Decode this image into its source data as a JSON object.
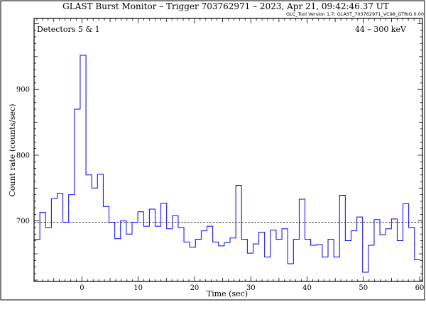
{
  "chart_data": {
    "type": "line",
    "style": "histogram-step",
    "title": "GLAST Burst Monitor  –  Trigger 703762971  –  2023, Apr 21, 09:42:46.37 UT",
    "subtitle": "GLC_Tool Version 1.7; GLAST_703762971_VC98_GTRIG.0.00",
    "left_annotation": "Detectors 5 & 1",
    "right_annotation": "44 – 300 keV",
    "xlabel": "Time (sec)",
    "ylabel": "Count rate (counts/sec)",
    "xlim": [
      -8.5,
      60.5
    ],
    "ylim": [
      608,
      1008
    ],
    "x_ticks": [
      0,
      10,
      20,
      30,
      40,
      50,
      60
    ],
    "y_ticks": [
      700,
      800,
      900
    ],
    "reference_line": {
      "value": 698,
      "style": "dashed"
    },
    "bin_width": 1.024,
    "bin_start": -8.5,
    "values": [
      672,
      713,
      690,
      734,
      742,
      698,
      740,
      870,
      952,
      770,
      750,
      771,
      722,
      698,
      673,
      700,
      680,
      698,
      714,
      692,
      718,
      692,
      727,
      688,
      708,
      690,
      668,
      660,
      672,
      685,
      692,
      668,
      662,
      667,
      674,
      754,
      672,
      651,
      665,
      683,
      645,
      686,
      672,
      688,
      635,
      672,
      733,
      672,
      663,
      664,
      645,
      672,
      645,
      739,
      670,
      685,
      706,
      622,
      663,
      702,
      679,
      688,
      703,
      670,
      726,
      690,
      641
    ],
    "colors": {
      "series": "#0000ff",
      "axes": "#000000",
      "reference": "#000000"
    }
  }
}
